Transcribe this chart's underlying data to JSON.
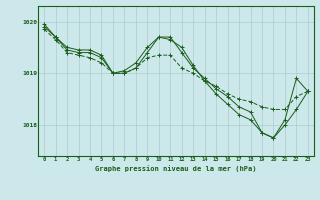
{
  "title": "Graphe pression niveau de la mer (hPa)",
  "bg_color": "#cce8ea",
  "line_color": "#1a5c1a",
  "grid_color": "#aacccc",
  "xlim": [
    -0.5,
    23.5
  ],
  "ylim": [
    1017.4,
    1020.3
  ],
  "yticks": [
    1018,
    1019,
    1020
  ],
  "xticks": [
    0,
    1,
    2,
    3,
    4,
    5,
    6,
    7,
    8,
    9,
    10,
    11,
    12,
    13,
    14,
    15,
    16,
    17,
    18,
    19,
    20,
    21,
    22,
    23
  ],
  "line1_solid": {
    "x": [
      0,
      1,
      2,
      3,
      4,
      5,
      6,
      7,
      8,
      9,
      10,
      11,
      12,
      13,
      14,
      15,
      16,
      17,
      18,
      19,
      20,
      21,
      22,
      23
    ],
    "y": [
      1019.9,
      1019.7,
      1019.45,
      1019.4,
      1019.4,
      1019.3,
      1019.0,
      1019.0,
      1019.1,
      1019.4,
      1019.7,
      1019.65,
      1019.5,
      1019.15,
      1018.85,
      1018.6,
      1018.4,
      1018.2,
      1018.1,
      1017.85,
      1017.75,
      1018.0,
      1018.3,
      1018.65
    ]
  },
  "line2_solid": {
    "x": [
      0,
      1,
      2,
      3,
      4,
      5,
      6,
      7,
      8,
      9,
      10,
      11,
      12,
      13,
      14,
      15,
      16,
      17,
      18,
      19,
      20,
      21,
      22,
      23
    ],
    "y": [
      1019.95,
      1019.7,
      1019.5,
      1019.45,
      1019.45,
      1019.35,
      1019.0,
      1019.05,
      1019.2,
      1019.5,
      1019.7,
      1019.7,
      1019.4,
      1019.1,
      1018.9,
      1018.7,
      1018.55,
      1018.35,
      1018.25,
      1017.85,
      1017.75,
      1018.1,
      1018.9,
      1018.65
    ]
  },
  "line3_dashed": {
    "x": [
      0,
      1,
      2,
      3,
      4,
      5,
      6,
      7,
      8,
      9,
      10,
      11,
      12,
      13,
      14,
      15,
      16,
      17,
      18,
      19,
      20,
      21,
      22,
      23
    ],
    "y": [
      1019.85,
      1019.65,
      1019.4,
      1019.35,
      1019.3,
      1019.2,
      1019.0,
      1019.0,
      1019.1,
      1019.3,
      1019.35,
      1019.35,
      1019.1,
      1019.0,
      1018.85,
      1018.75,
      1018.6,
      1018.5,
      1018.45,
      1018.35,
      1018.3,
      1018.3,
      1018.55,
      1018.65
    ]
  }
}
